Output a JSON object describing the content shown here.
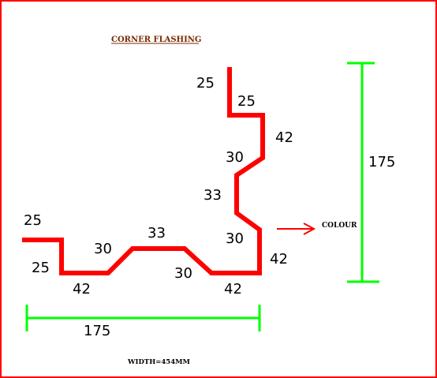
{
  "title": "CORNER FLASHING",
  "colour_label": "COLOUR",
  "width_label": "WIDTH=454MM",
  "profile_color": "#ff0000",
  "dimension_line_color": "#00ff00",
  "dimensions": {
    "top_return": "25",
    "top_horizontal": "25",
    "right_upper_vertical": "42",
    "right_upper_diagonal": "30",
    "right_middle_vertical": "33",
    "right_lower_diagonal": "30",
    "right_lower_vertical": "42",
    "left_return": "25",
    "left_vertical": "25",
    "bottom_left_horizontal": "42",
    "bottom_left_diagonal": "30",
    "bottom_middle_horizontal": "33",
    "bottom_right_diagonal": "30",
    "bottom_right_horizontal": "42",
    "overall_height": "175",
    "overall_width": "175"
  }
}
